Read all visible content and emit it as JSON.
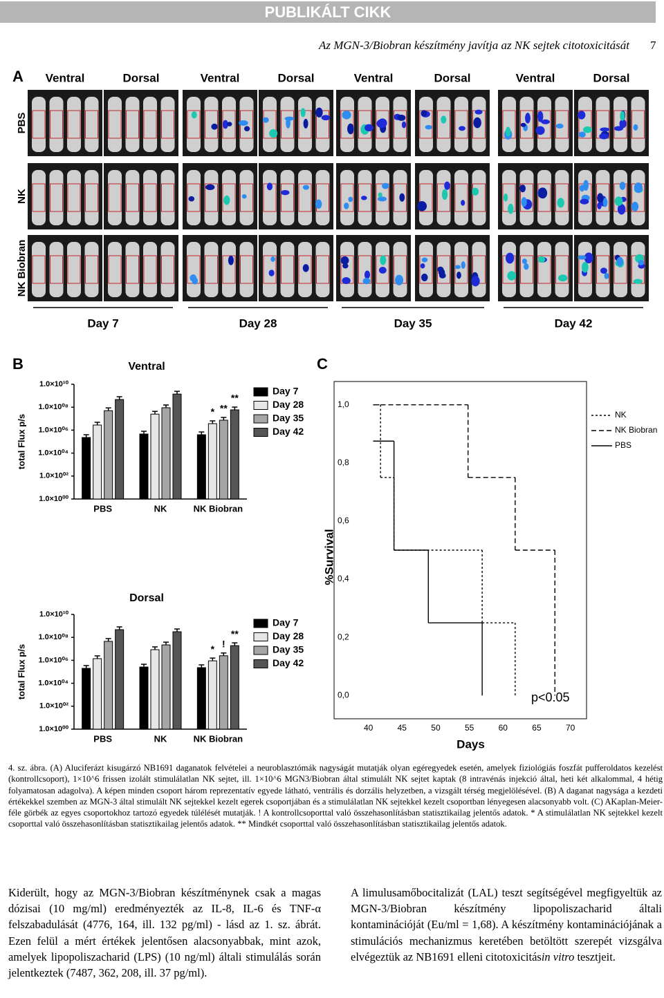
{
  "header": {
    "banner": "PUBLIKÁLT CIKK",
    "running_title": "Az MGN-3/Biobran készítmény javítja az NK sejtek citotoxicitását",
    "page_number": "7"
  },
  "figure": {
    "panel_a": {
      "label": "A",
      "columns": [
        "Ventral",
        "Dorsal",
        "Ventral",
        "Dorsal",
        "Ventral",
        "Dorsal",
        "Ventral",
        "Dorsal"
      ],
      "rows": [
        "PBS",
        "NK",
        "NK Biobran"
      ],
      "days": [
        "Day 7",
        "Day 28",
        "Day 35",
        "Day 42"
      ]
    },
    "panel_b": {
      "label": "B"
    },
    "panel_c": {
      "label": "C"
    }
  },
  "chart_data": [
    {
      "type": "bar",
      "title": "Ventral",
      "y_label": "total Flux p/s",
      "log_scale": true,
      "legend": "right",
      "categories": [
        "PBS",
        "NK",
        "NK Biobran"
      ],
      "ylim": [
        1,
        10000000000
      ],
      "yticks": [
        {
          "value": 1,
          "label": "1.0×10⁰⁰"
        },
        {
          "value": 100,
          "label": "1.0×10⁰²"
        },
        {
          "value": 10000,
          "label": "1.0×10⁰⁴"
        },
        {
          "value": 1000000,
          "label": "1.0×10⁰⁶"
        },
        {
          "value": 100000000,
          "label": "1.0×10⁰⁸"
        },
        {
          "value": 10000000000,
          "label": "1.0×10¹⁰"
        }
      ],
      "series": [
        {
          "name": "Day 7",
          "color": "#000000",
          "values": [
            230000,
            460000,
            400000
          ],
          "annotations": [
            null,
            null,
            null
          ]
        },
        {
          "name": "Day 28",
          "color": "#e6e6e6",
          "values": [
            2800000,
            25000000,
            3700000
          ],
          "annotations": [
            null,
            null,
            "*"
          ]
        },
        {
          "name": "Day 35",
          "color": "#a6a6a6",
          "values": [
            50000000,
            90000000,
            7400000
          ],
          "annotations": [
            null,
            null,
            "**"
          ]
        },
        {
          "name": "Day 42",
          "color": "#555555",
          "values": [
            470000000,
            1400000000,
            59000000
          ],
          "annotations": [
            null,
            null,
            "**"
          ]
        }
      ]
    },
    {
      "type": "bar",
      "title": "Dorsal",
      "y_label": "total Flux p/s",
      "log_scale": true,
      "legend": "right",
      "categories": [
        "PBS",
        "NK",
        "NK Biobran"
      ],
      "ylim": [
        1,
        10000000000
      ],
      "yticks": [
        {
          "value": 1,
          "label": "1.0×10⁰⁰"
        },
        {
          "value": 100,
          "label": "1.0×10⁰²"
        },
        {
          "value": 10000,
          "label": "1.0×10⁰⁴"
        },
        {
          "value": 1000000,
          "label": "1.0×10⁰⁶"
        },
        {
          "value": 100000000,
          "label": "1.0×10⁰⁸"
        },
        {
          "value": 10000000000,
          "label": "1.0×10¹⁰"
        }
      ],
      "series": [
        {
          "name": "Day 7",
          "color": "#000000",
          "values": [
            200000,
            260000,
            230000
          ],
          "annotations": [
            null,
            null,
            null
          ]
        },
        {
          "name": "Day 28",
          "color": "#e6e6e6",
          "values": [
            1400000,
            8500000,
            900000
          ],
          "annotations": [
            null,
            null,
            "*"
          ]
        },
        {
          "name": "Day 35",
          "color": "#a6a6a6",
          "values": [
            45000000,
            22000000,
            2500000
          ],
          "annotations": [
            null,
            null,
            "!"
          ]
        },
        {
          "name": "Day 42",
          "color": "#555555",
          "values": [
            470000000,
            310000000,
            19000000
          ],
          "annotations": [
            null,
            null,
            "**"
          ]
        }
      ]
    },
    {
      "type": "step",
      "x_label": "Days",
      "y_label": "%Survival",
      "annotation": "p<0.05",
      "legend": "upper right",
      "xlim": [
        34.9,
        72.4
      ],
      "ylim": [
        -0.08,
        1.08
      ],
      "xticks": [
        40,
        45,
        50,
        55,
        60,
        65,
        70
      ],
      "yticks": [
        {
          "value": 0,
          "label": "0,0"
        },
        {
          "value": 0.2,
          "label": "0,2"
        },
        {
          "value": 0.4,
          "label": "0,4"
        },
        {
          "value": 0.6,
          "label": "0,6"
        },
        {
          "value": 0.8,
          "label": "0,8"
        },
        {
          "value": 1,
          "label": "1,0"
        }
      ],
      "series": [
        {
          "name": "NK",
          "color": "#000000",
          "line_style": "dotted",
          "x": [
            40.7,
            41.8,
            43.8,
            56.9,
            61.8
          ],
          "values": [
            1,
            0.75,
            0.5,
            0.25,
            0
          ]
        },
        {
          "name": "NK Biobran",
          "color": "#000000",
          "line_style": "dashed",
          "x": [
            40.7,
            54.8,
            61.8,
            67.7
          ],
          "values": [
            1,
            0.75,
            0.5,
            0
          ]
        },
        {
          "name": "PBS",
          "color": "#000000",
          "line_style": "solid",
          "x": [
            40.7,
            43.8,
            48.9,
            56.9
          ],
          "values": [
            0.875,
            0.5,
            0.25,
            0
          ]
        }
      ]
    }
  ],
  "caption": "4. sz. ábra. (A) Aluciferázt kisugárzó NB1691 daganatok felvételei a neuroblasztómák nagyságát mutatják olyan egéregyedek esetén, amelyek fiziológiás foszfát pufferoldatos kezelést (kontrollcsoport), 1×10^6 frissen izolált stimulálatlan NK sejtet, ill. 1×10^6 MGN3/Biobran által stimulált NK sejtet kaptak (8 intravénás injekció által, heti két alkalommal, 4 hétig folyamatosan adagolva). A képen minden csoport három reprezentatív egyede látható, ventrális és dorzális helyzetben, a vizsgált térség megjelölésével. (B) A daganat nagysága a kezdeti értékekkel szemben az MGN-3 által stimulált NK sejtekkel kezelt egerek csoportjában és a stimulálatlan NK sejtekkel kezelt csoportban lényegesen alacsonyabb volt. (C) AKaplan-Meier-féle görbék az egyes csoportokhoz tartozó egyedek túlélését mutatják. ! A kontrollcsoporttal való összehasonlításban statisztikailag jelentős adatok. * A stimulálatlan NK sejtekkel kezelt csoporttal való összehasonlításban statisztikailag jelentős adatok. ** Mindkét csoporttal való összehasonlításban statisztikailag jelentős adatok.",
  "body": {
    "left": "Kiderült, hogy az MGN-3/Biobran készítménynek csak a magas dózisai (10 mg/ml) eredményezték az IL-8, IL-6 és TNF-α felszabadulását (4776, 164, ill. 132 pg/ml) - lásd az 1. sz. ábrát. Ezen felül a mért értékek jelentősen alacsonyabbak, mint azok, amelyek lipopoliszacharid (LPS) (10 ng/ml) általi stimulálás során jelentkeztek (7487, 362, 208, ill. 37 pg/ml).",
    "right": {
      "text": "A limulusamőbocitalizát (LAL) teszt segítségével megfigyeltük az MGN-3/Biobran készítmény lipopoliszacharid általi kontaminációját (Eu/ml = 1,68). A készítmény kontaminációjának a stimulációs mechanizmus keretében betöltött szerepét vizsgálva elvégeztük az NB1691 elleni citotoxicitás",
      "italic": "in vitro",
      "tail": " tesztjeit."
    }
  }
}
